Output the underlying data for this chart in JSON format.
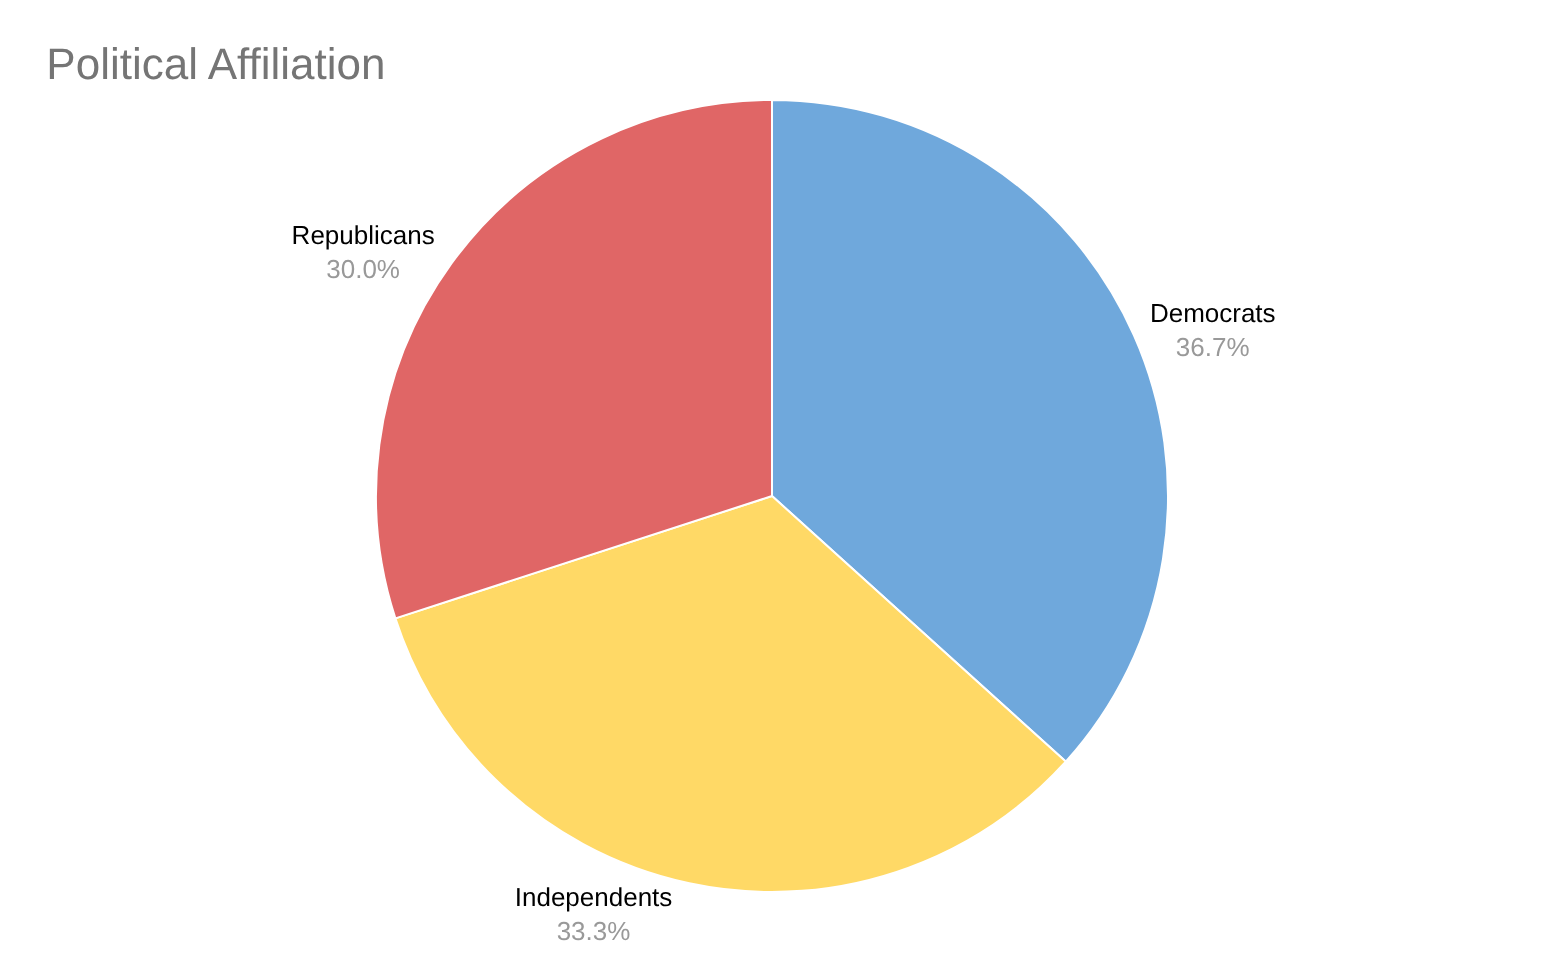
{
  "chart_data": {
    "type": "pie",
    "title": "Political Affiliation",
    "categories": [
      "Democrats",
      "Independents",
      "Republicans"
    ],
    "values": [
      36.7,
      33.3,
      30.0
    ],
    "colors": [
      "#6fa8dc",
      "#ffd966",
      "#e06666"
    ],
    "value_labels": [
      "36.7%",
      "33.3%",
      "30.0%"
    ],
    "legend": false
  }
}
